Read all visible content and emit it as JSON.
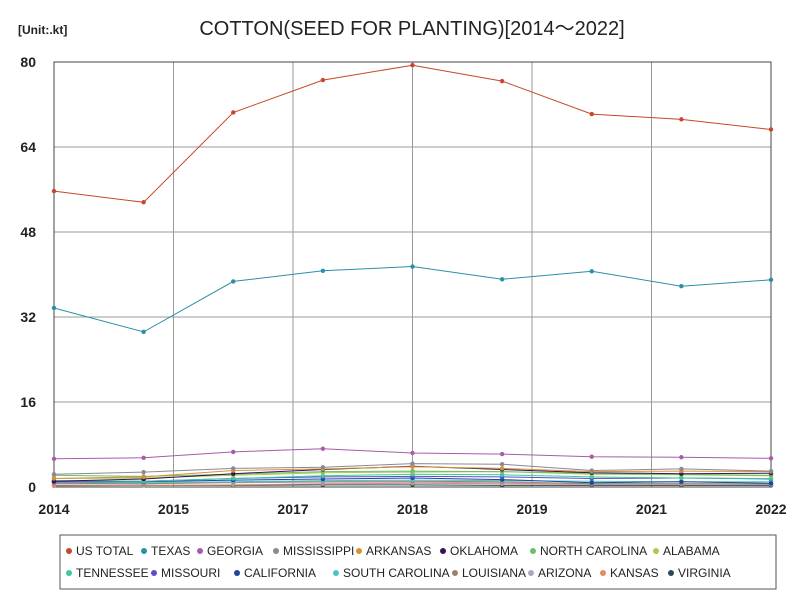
{
  "chart_data": {
    "type": "line",
    "title": "COTTON(SEED FOR PLANTING)[2014～2022]",
    "unit_label": "[Unit:.kt]",
    "xlabel": "",
    "ylabel": "",
    "x_ticks": [
      "2014",
      "2015",
      "2017",
      "2018",
      "2019",
      "2021",
      "2022"
    ],
    "y_ticks": [
      "0",
      "16",
      "32",
      "48",
      "64",
      "80"
    ],
    "ylim": [
      0,
      80
    ],
    "xlim": [
      2014,
      2022
    ],
    "x": [
      2014,
      2015,
      2016,
      2017,
      2018,
      2019,
      2020,
      2021,
      2022
    ],
    "grid": true,
    "legend_position": "bottom",
    "series": [
      {
        "name": "US TOTAL",
        "color": "#c8462b",
        "values": [
          55.7,
          53.6,
          70.5,
          76.6,
          79.4,
          76.4,
          70.2,
          69.2,
          67.3
        ]
      },
      {
        "name": "TEXAS",
        "color": "#2a8fa8",
        "values": [
          33.7,
          29.2,
          38.7,
          40.7,
          41.5,
          39.1,
          40.6,
          37.8,
          39.0
        ]
      },
      {
        "name": "GEORGIA",
        "color": "#a75ca8",
        "values": [
          5.3,
          5.5,
          6.6,
          7.2,
          6.4,
          6.2,
          5.7,
          5.6,
          5.4
        ]
      },
      {
        "name": "MISSISSIPPI",
        "color": "#8a8a96",
        "values": [
          2.4,
          2.8,
          3.5,
          3.7,
          4.4,
          4.3,
          3.1,
          3.4,
          3.0
        ]
      },
      {
        "name": "ARKANSAS",
        "color": "#d99034",
        "values": [
          1.6,
          1.9,
          3.1,
          3.4,
          3.8,
          3.5,
          2.9,
          3.0,
          2.9
        ]
      },
      {
        "name": "OKLAHOMA",
        "color": "#3d1058",
        "values": [
          1.1,
          1.5,
          2.5,
          3.3,
          3.9,
          3.3,
          2.7,
          2.5,
          2.6
        ]
      },
      {
        "name": "NORTH CAROLINA",
        "color": "#6cbf6a",
        "values": [
          2.2,
          2.0,
          2.4,
          2.9,
          3.0,
          2.9,
          2.6,
          2.4,
          2.2
        ]
      },
      {
        "name": "ALABAMA",
        "color": "#a8cc4c",
        "values": [
          1.6,
          1.7,
          2.2,
          2.7,
          2.8,
          2.9,
          2.4,
          2.3,
          2.1
        ]
      },
      {
        "name": "TENNESSEE",
        "color": "#3cc9a0",
        "values": [
          1.2,
          1.1,
          1.6,
          2.1,
          2.4,
          2.3,
          1.9,
          1.7,
          1.6
        ]
      },
      {
        "name": "MISSOURI",
        "color": "#5b4ec9",
        "values": [
          1.0,
          1.1,
          1.6,
          1.9,
          2.0,
          1.9,
          1.6,
          1.7,
          1.5
        ]
      },
      {
        "name": "CALIFORNIA",
        "color": "#1f45a0",
        "values": [
          1.0,
          1.0,
          1.3,
          1.5,
          1.7,
          1.4,
          0.8,
          1.0,
          0.7
        ]
      },
      {
        "name": "SOUTH CAROLINA",
        "color": "#49c5c9",
        "values": [
          0.9,
          0.8,
          1.0,
          1.2,
          1.3,
          1.2,
          1.1,
          1.0,
          1.0
        ]
      },
      {
        "name": "LOUISIANA",
        "color": "#a08266",
        "values": [
          0.7,
          0.6,
          0.9,
          1.1,
          1.1,
          1.0,
          0.6,
          0.6,
          0.6
        ]
      },
      {
        "name": "ARIZONA",
        "color": "#a9a6c9",
        "values": [
          0.6,
          0.6,
          0.8,
          0.9,
          0.9,
          0.8,
          0.6,
          0.6,
          0.5
        ]
      },
      {
        "name": "KANSAS",
        "color": "#e38a65",
        "values": [
          0.2,
          0.3,
          0.4,
          0.6,
          0.7,
          0.6,
          0.5,
          0.5,
          0.5
        ]
      },
      {
        "name": "VIRGINIA",
        "color": "#294a5c",
        "values": [
          0.3,
          0.3,
          0.3,
          0.4,
          0.4,
          0.3,
          0.3,
          0.3,
          0.3
        ]
      }
    ]
  }
}
